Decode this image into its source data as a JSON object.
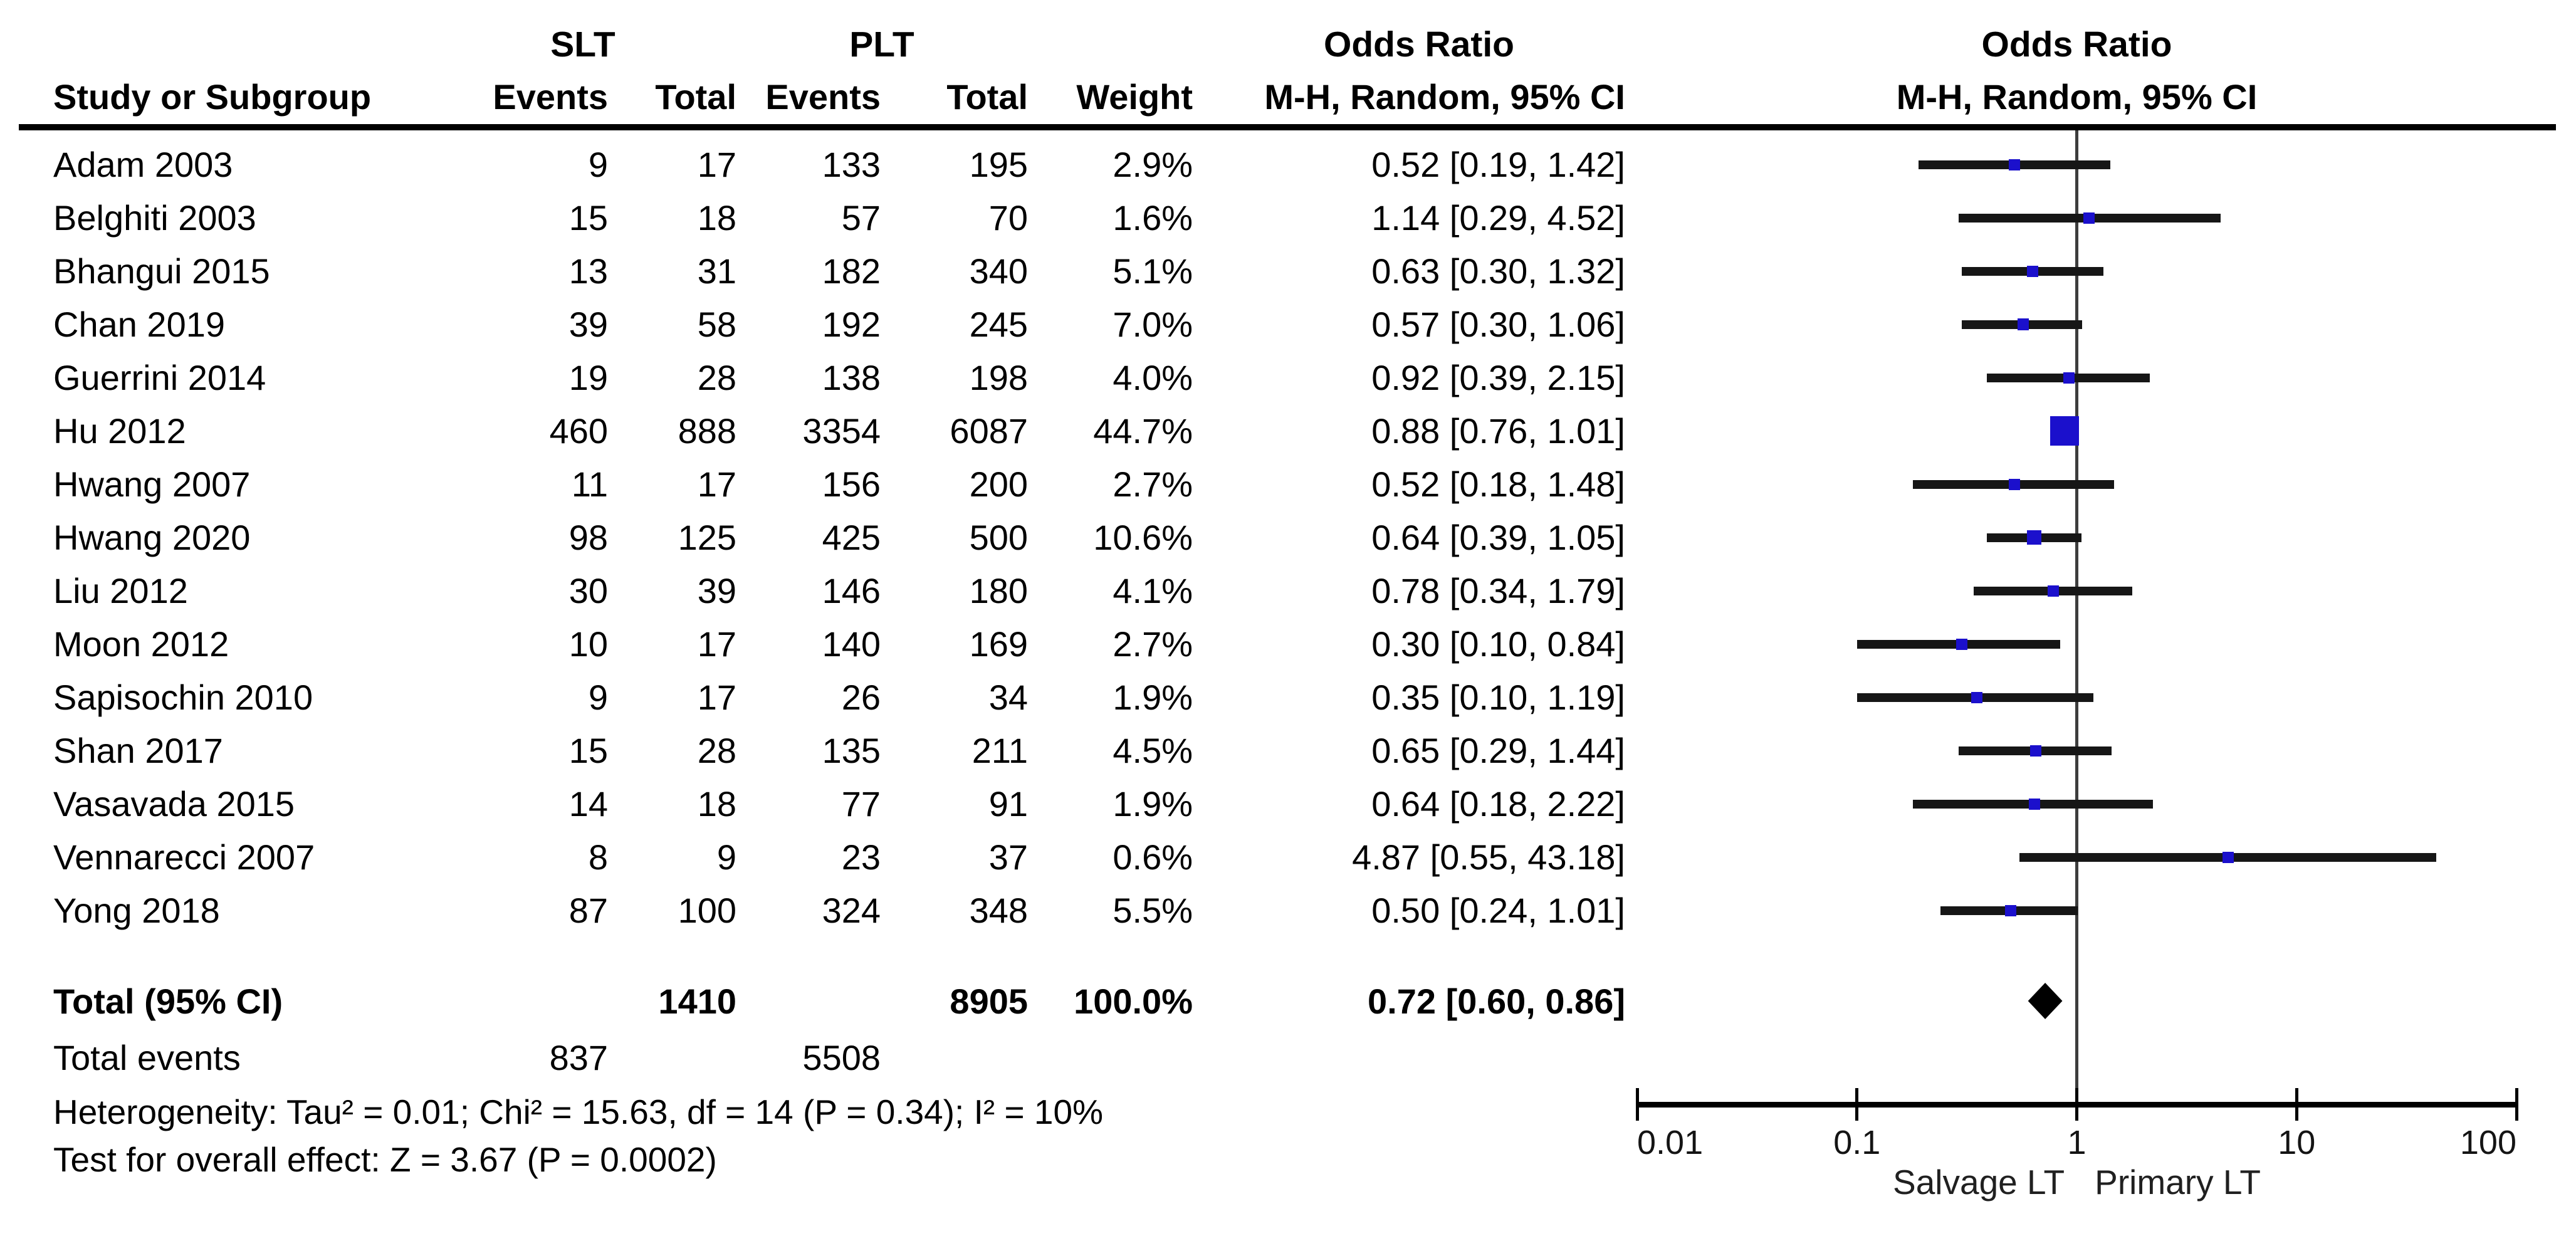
{
  "colors": {
    "marker_blue": "#1b10cc",
    "diamond_black": "#000000",
    "line_black": "#161616"
  },
  "header": {
    "group1": "SLT",
    "group2": "PLT",
    "study_col": "Study or Subgroup",
    "events_col": "Events",
    "total_col": "Total",
    "weight_col": "Weight",
    "or_title": "Odds Ratio",
    "or_subtitle": "M-H, Random, 95% CI",
    "plot_title": "Odds Ratio",
    "plot_subtitle": "M-H, Random, 95% CI"
  },
  "chart_data": {
    "type": "forest",
    "effect_measure": "Odds Ratio",
    "method": "M-H, Random, 95% CI",
    "x_scale": "log",
    "xlim": [
      0.01,
      100
    ],
    "x_ticks": [
      "0.01",
      "0.1",
      "1",
      "10",
      "100"
    ],
    "x_left_label": "Salvage LT",
    "x_right_label": "Primary LT",
    "group1": "SLT",
    "group2": "PLT",
    "studies": [
      {
        "name": "Adam 2003",
        "events1": "9",
        "total1": "17",
        "events2": "133",
        "total2": "195",
        "weight": "2.9%",
        "or": 0.52,
        "ci_lo": 0.19,
        "ci_hi": 1.42,
        "label": "0.52 [0.19, 1.42]"
      },
      {
        "name": "Belghiti 2003",
        "events1": "15",
        "total1": "18",
        "events2": "57",
        "total2": "70",
        "weight": "1.6%",
        "or": 1.14,
        "ci_lo": 0.29,
        "ci_hi": 4.52,
        "label": "1.14 [0.29, 4.52]"
      },
      {
        "name": "Bhangui 2015",
        "events1": "13",
        "total1": "31",
        "events2": "182",
        "total2": "340",
        "weight": "5.1%",
        "or": 0.63,
        "ci_lo": 0.3,
        "ci_hi": 1.32,
        "label": "0.63 [0.30, 1.32]"
      },
      {
        "name": "Chan 2019",
        "events1": "39",
        "total1": "58",
        "events2": "192",
        "total2": "245",
        "weight": "7.0%",
        "or": 0.57,
        "ci_lo": 0.3,
        "ci_hi": 1.06,
        "label": "0.57 [0.30, 1.06]"
      },
      {
        "name": "Guerrini 2014",
        "events1": "19",
        "total1": "28",
        "events2": "138",
        "total2": "198",
        "weight": "4.0%",
        "or": 0.92,
        "ci_lo": 0.39,
        "ci_hi": 2.15,
        "label": "0.92 [0.39, 2.15]"
      },
      {
        "name": "Hu 2012",
        "events1": "460",
        "total1": "888",
        "events2": "3354",
        "total2": "6087",
        "weight": "44.7%",
        "or": 0.88,
        "ci_lo": 0.76,
        "ci_hi": 1.01,
        "label": "0.88 [0.76, 1.01]"
      },
      {
        "name": "Hwang 2007",
        "events1": "11",
        "total1": "17",
        "events2": "156",
        "total2": "200",
        "weight": "2.7%",
        "or": 0.52,
        "ci_lo": 0.18,
        "ci_hi": 1.48,
        "label": "0.52 [0.18, 1.48]"
      },
      {
        "name": "Hwang 2020",
        "events1": "98",
        "total1": "125",
        "events2": "425",
        "total2": "500",
        "weight": "10.6%",
        "or": 0.64,
        "ci_lo": 0.39,
        "ci_hi": 1.05,
        "label": "0.64 [0.39, 1.05]"
      },
      {
        "name": "Liu 2012",
        "events1": "30",
        "total1": "39",
        "events2": "146",
        "total2": "180",
        "weight": "4.1%",
        "or": 0.78,
        "ci_lo": 0.34,
        "ci_hi": 1.79,
        "label": "0.78 [0.34, 1.79]"
      },
      {
        "name": "Moon 2012",
        "events1": "10",
        "total1": "17",
        "events2": "140",
        "total2": "169",
        "weight": "2.7%",
        "or": 0.3,
        "ci_lo": 0.1,
        "ci_hi": 0.84,
        "label": "0.30 [0.10, 0.84]"
      },
      {
        "name": "Sapisochin 2010",
        "events1": "9",
        "total1": "17",
        "events2": "26",
        "total2": "34",
        "weight": "1.9%",
        "or": 0.35,
        "ci_lo": 0.1,
        "ci_hi": 1.19,
        "label": "0.35 [0.10, 1.19]"
      },
      {
        "name": "Shan 2017",
        "events1": "15",
        "total1": "28",
        "events2": "135",
        "total2": "211",
        "weight": "4.5%",
        "or": 0.65,
        "ci_lo": 0.29,
        "ci_hi": 1.44,
        "label": "0.65 [0.29, 1.44]"
      },
      {
        "name": "Vasavada 2015",
        "events1": "14",
        "total1": "18",
        "events2": "77",
        "total2": "91",
        "weight": "1.9%",
        "or": 0.64,
        "ci_lo": 0.18,
        "ci_hi": 2.22,
        "label": "0.64 [0.18, 2.22]"
      },
      {
        "name": "Vennarecci 2007",
        "events1": "8",
        "total1": "9",
        "events2": "23",
        "total2": "37",
        "weight": "0.6%",
        "or": 4.87,
        "ci_lo": 0.55,
        "ci_hi": 43.18,
        "label": "4.87 [0.55, 43.18]"
      },
      {
        "name": "Yong 2018",
        "events1": "87",
        "total1": "100",
        "events2": "324",
        "total2": "348",
        "weight": "5.5%",
        "or": 0.5,
        "ci_lo": 0.24,
        "ci_hi": 1.01,
        "label": "0.50 [0.24, 1.01]"
      }
    ],
    "total": {
      "name": "Total (95% CI)",
      "total1": "1410",
      "total2": "8905",
      "weight": "100.0%",
      "or": 0.72,
      "ci_lo": 0.6,
      "ci_hi": 0.86,
      "label": "0.72 [0.60, 0.86]"
    },
    "total_events": {
      "name": "Total events",
      "events1": "837",
      "events2": "5508"
    },
    "heterogeneity": "Heterogeneity: Tau² = 0.01; Chi² = 15.63, df = 14 (P = 0.34); I² = 10%",
    "overall_effect": "Test for overall effect: Z = 3.67 (P = 0.0002)"
  }
}
